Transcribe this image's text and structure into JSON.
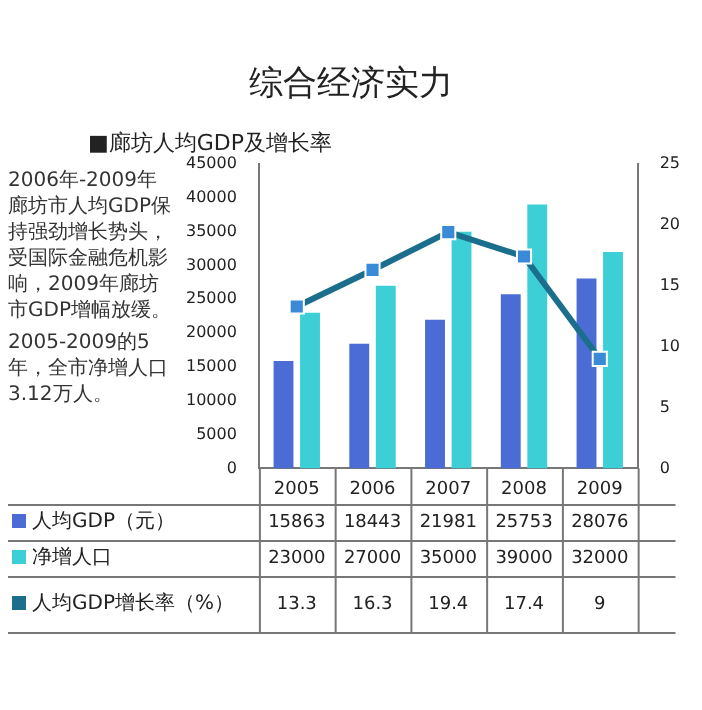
{
  "chart_data": {
    "type": "bar",
    "title": "综合经济实力",
    "subtitle": "■廊坊人均GDP及增长率",
    "annotations": [
      "2006年-2009年廊坊市人均GDP保持强劲增长势头，受国际金融危机影响，2009年廊坊市GDP增幅放缓。",
      "2005-2009的5年，全市净增人口3.12万人。"
    ],
    "categories": [
      "2005",
      "2006",
      "2007",
      "2008",
      "2009"
    ],
    "series": [
      {
        "name": "人均GDP（元）",
        "color": "#4a6cd4",
        "values": [
          15863,
          18443,
          21981,
          25753,
          28076
        ]
      },
      {
        "name": "净增人口",
        "color": "#3ccfd6",
        "values": [
          23000,
          27000,
          35000,
          39000,
          32000
        ]
      },
      {
        "name": "人均GDP增长率（%）",
        "type": "line",
        "axis": "y2",
        "color": "#1b6f8c",
        "values": [
          13.3,
          16.3,
          19.4,
          17.4,
          9
        ]
      }
    ],
    "ylim": [
      0,
      45000
    ],
    "yticks": [
      0,
      5000,
      10000,
      15000,
      20000,
      25000,
      30000,
      35000,
      40000,
      45000
    ],
    "y2lim": [
      0,
      25
    ],
    "y2ticks": [
      0,
      5,
      10,
      15,
      20,
      25
    ],
    "grid": false,
    "legend": "bottom",
    "marker": "square",
    "line_style": "solid",
    "data_labels": true
  }
}
